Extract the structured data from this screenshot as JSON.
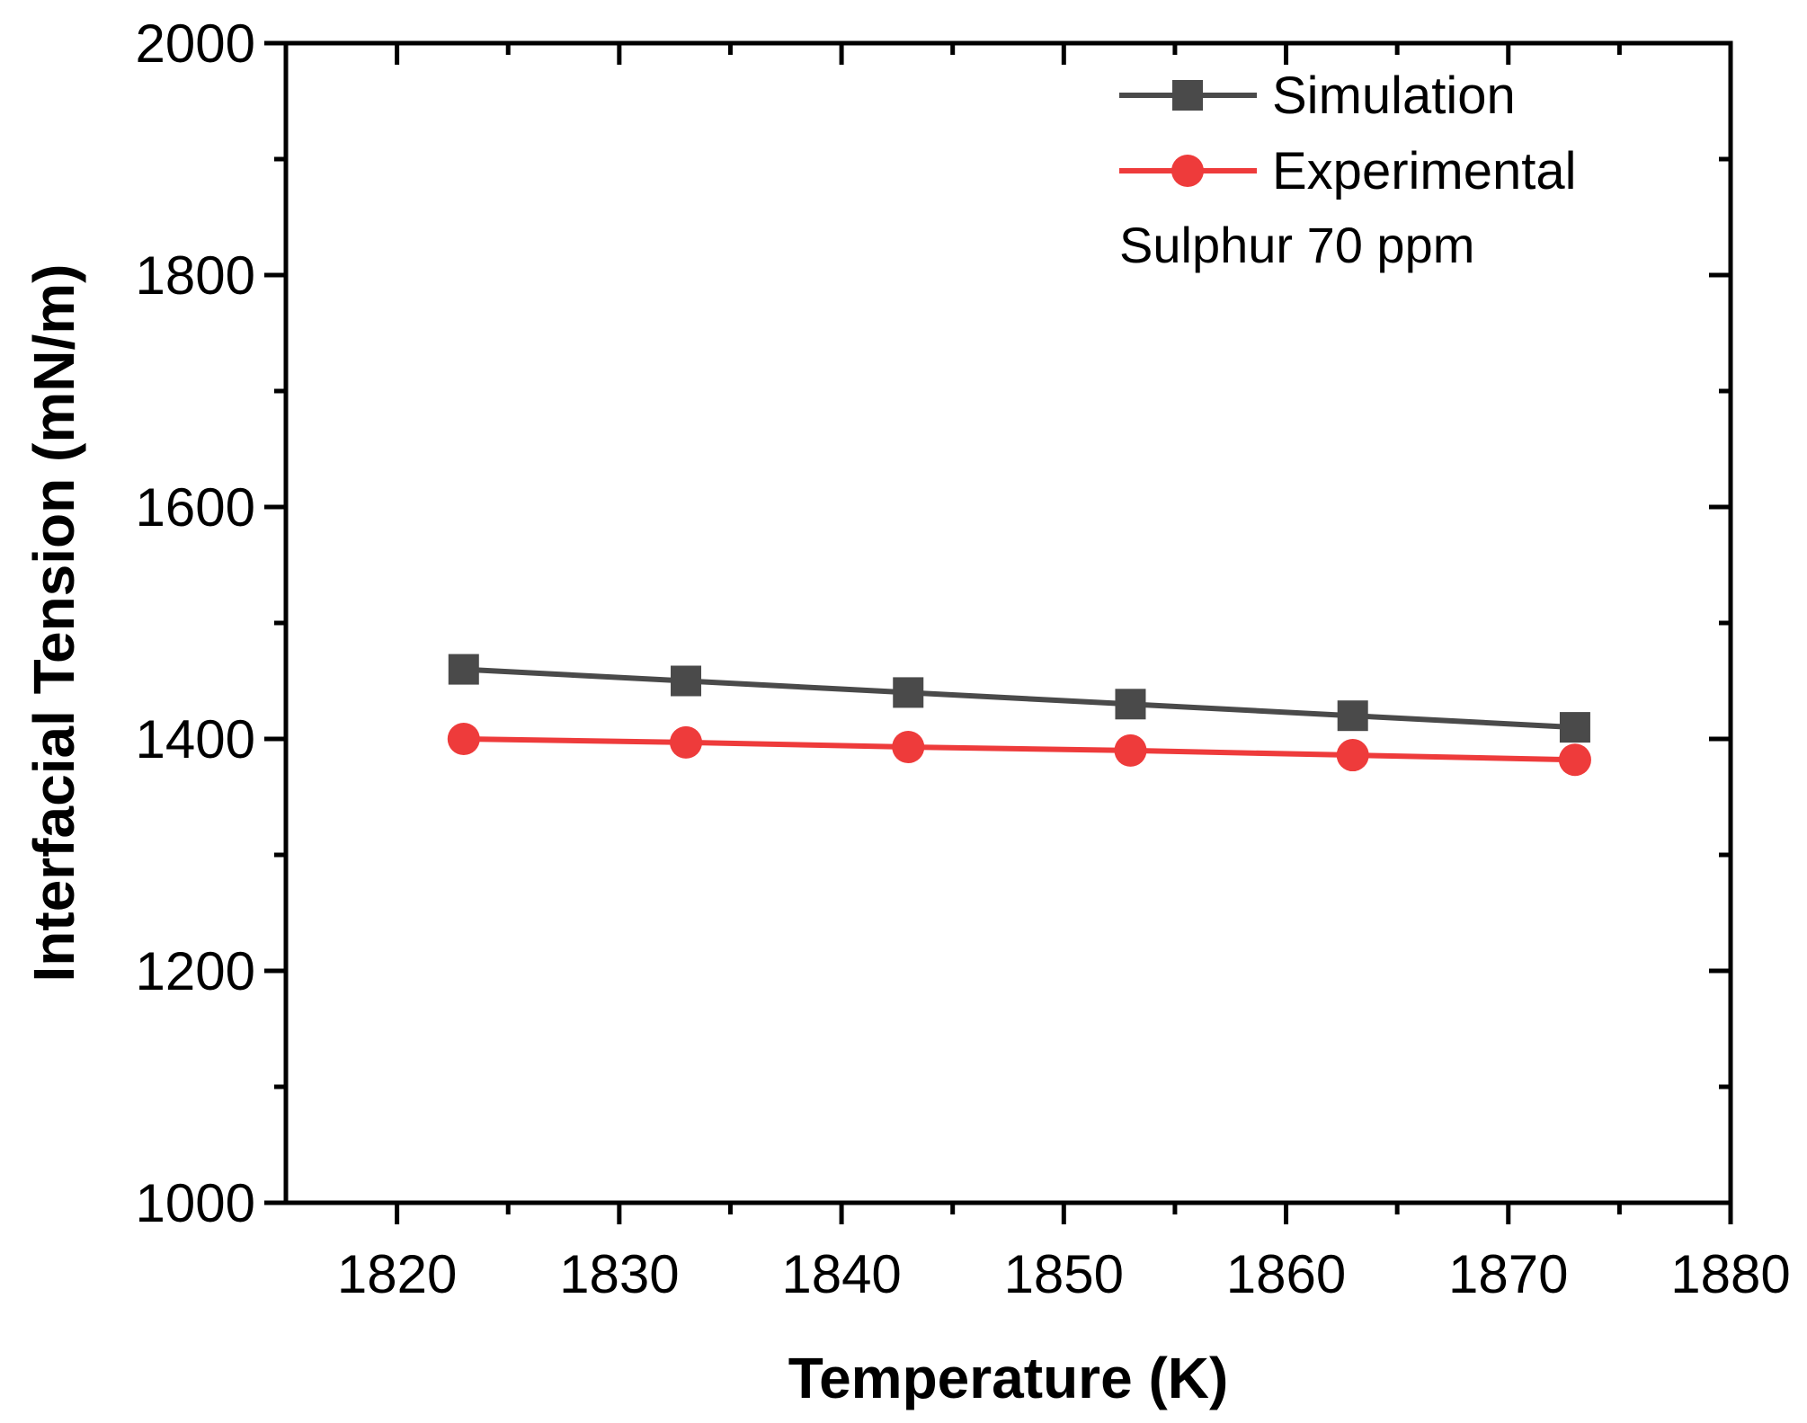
{
  "chart_data": {
    "type": "line",
    "title": "",
    "xlabel": "Temperature (K)",
    "ylabel": "Interfacial Tension (mN/m)",
    "xlim": [
      1815,
      1880
    ],
    "ylim": [
      1000,
      2000
    ],
    "x_major_ticks": [
      1820,
      1830,
      1840,
      1850,
      1860,
      1870,
      1880
    ],
    "x_minor_ticks": [
      1825,
      1835,
      1845,
      1855,
      1865,
      1875
    ],
    "y_major_ticks": [
      1000,
      1200,
      1400,
      1600,
      1800,
      2000
    ],
    "y_minor_ticks": [
      1100,
      1300,
      1500,
      1700,
      1900
    ],
    "x_tick_labels": [
      "1820",
      "1830",
      "1840",
      "1850",
      "1860",
      "1870",
      "1880"
    ],
    "y_tick_labels": [
      "1000",
      "1200",
      "1400",
      "1600",
      "1800",
      "2000"
    ],
    "x": [
      1823,
      1833,
      1843,
      1853,
      1863,
      1873
    ],
    "series": [
      {
        "name": "Simulation",
        "marker": "square",
        "color": "#4a4a4a",
        "values": [
          1460,
          1450,
          1440,
          1430,
          1420,
          1410
        ]
      },
      {
        "name": "Experimental",
        "marker": "circle",
        "color": "#ee3b3b",
        "values": [
          1400,
          1397,
          1393,
          1390,
          1386,
          1382
        ]
      }
    ],
    "annotation": "Sulphur 70 ppm",
    "legend_position": "top-right",
    "grid": false
  }
}
